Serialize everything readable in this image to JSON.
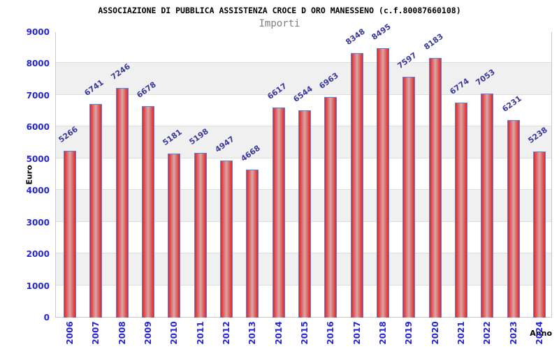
{
  "chart_data": {
    "type": "bar",
    "title": "ASSOCIAZIONE DI PUBBLICA ASSISTENZA CROCE D ORO MANESSENO (c.f.80087660108)",
    "subtitle": "Importi",
    "xlabel": "Anno",
    "ylabel": "Euro",
    "categories": [
      "2006",
      "2007",
      "2008",
      "2009",
      "2010",
      "2011",
      "2012",
      "2013",
      "2014",
      "2015",
      "2016",
      "2017",
      "2018",
      "2019",
      "2020",
      "2021",
      "2022",
      "2023",
      "2024"
    ],
    "values": [
      5266,
      6741,
      7246,
      6678,
      5181,
      5198,
      4947,
      4668,
      6617,
      6544,
      6963,
      8348,
      8495,
      7597,
      8183,
      6774,
      7053,
      6231,
      5238
    ],
    "ylim": [
      0,
      9000
    ],
    "ytick_step": 1000,
    "yticks": [
      0,
      1000,
      2000,
      3000,
      4000,
      5000,
      6000,
      7000,
      8000,
      9000
    ],
    "legend": "none",
    "grid": "horizontal-bands",
    "colors": {
      "bar_fill_edge": "#ee2020",
      "bar_fill_center": "#d8a8a8",
      "bar_border": "#4a89e8",
      "value_label": "#3a3a9e",
      "tick_label": "#2525d6",
      "band_stripe": "#f0f0f0",
      "frame_border": "#c9c9c9",
      "title": "#000000",
      "subtitle": "#7f7f7f"
    }
  }
}
